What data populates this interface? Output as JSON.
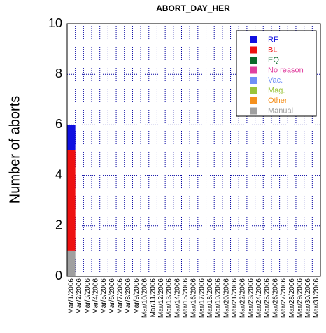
{
  "chart_data": {
    "type": "stacked_bar",
    "title": "ABORT_DAY_HER",
    "y_label": "Number of aborts",
    "categories": [
      "Mar/1/2006",
      "Mar/2/2006",
      "Mar/3/2006",
      "Mar/4/2006",
      "Mar/5/2006",
      "Mar/6/2006",
      "Mar/7/2006",
      "Mar/8/2006",
      "Mar/9/2006",
      "Mar/10/2006",
      "Mar/11/2006",
      "Mar/12/2006",
      "Mar/13/2006",
      "Mar/14/2006",
      "Mar/15/2006",
      "Mar/16/2006",
      "Mar/17/2006",
      "Mar/18/2006",
      "Mar/19/2006",
      "Mar/20/2006",
      "Mar/21/2006",
      "Mar/22/2006",
      "Mar/23/2006",
      "Mar/24/2006",
      "Mar/25/2006",
      "Mar/26/2006",
      "Mar/27/2006",
      "Mar/28/2006",
      "Mar/29/2006",
      "Mar/30/2006",
      "Mar/31/2006"
    ],
    "series": [
      {
        "name": "RF",
        "color": "#1010e0",
        "values": [
          1,
          0,
          0,
          0,
          0,
          0,
          0,
          0,
          0,
          0,
          0,
          0,
          0,
          0,
          0,
          0,
          0,
          0,
          0,
          0,
          0,
          0,
          0,
          0,
          0,
          0,
          0,
          0,
          0,
          0,
          0
        ]
      },
      {
        "name": "BL",
        "color": "#ee1111",
        "values": [
          4,
          0,
          0,
          0,
          0,
          0,
          0,
          0,
          0,
          0,
          0,
          0,
          0,
          0,
          0,
          0,
          0,
          0,
          0,
          0,
          0,
          0,
          0,
          0,
          0,
          0,
          0,
          0,
          0,
          0,
          0
        ]
      },
      {
        "name": "EQ",
        "color": "#0a6a2a",
        "values": [
          0,
          0,
          0,
          0,
          0,
          0,
          0,
          0,
          0,
          0,
          0,
          0,
          0,
          0,
          0,
          0,
          0,
          0,
          0,
          0,
          0,
          0,
          0,
          0,
          0,
          0,
          0,
          0,
          0,
          0,
          0
        ]
      },
      {
        "name": "No reason",
        "color": "#e0409f",
        "values": [
          0,
          0,
          0,
          0,
          0,
          0,
          0,
          0,
          0,
          0,
          0,
          0,
          0,
          0,
          0,
          0,
          0,
          0,
          0,
          0,
          0,
          0,
          0,
          0,
          0,
          0,
          0,
          0,
          0,
          0,
          0
        ]
      },
      {
        "name": "Vac.",
        "color": "#6f8ff7",
        "values": [
          0,
          0,
          0,
          0,
          0,
          0,
          0,
          0,
          0,
          0,
          0,
          0,
          0,
          0,
          0,
          0,
          0,
          0,
          0,
          0,
          0,
          0,
          0,
          0,
          0,
          0,
          0,
          0,
          0,
          0,
          0
        ]
      },
      {
        "name": "Mag.",
        "color": "#9ac43a",
        "values": [
          0,
          0,
          0,
          0,
          0,
          0,
          0,
          0,
          0,
          0,
          0,
          0,
          0,
          0,
          0,
          0,
          0,
          0,
          0,
          0,
          0,
          0,
          0,
          0,
          0,
          0,
          0,
          0,
          0,
          0,
          0
        ]
      },
      {
        "name": "Other",
        "color": "#f5901e",
        "values": [
          0,
          0,
          0,
          0,
          0,
          0,
          0,
          0,
          0,
          0,
          0,
          0,
          0,
          0,
          0,
          0,
          0,
          0,
          0,
          0,
          0,
          0,
          0,
          0,
          0,
          0,
          0,
          0,
          0,
          0,
          0
        ]
      },
      {
        "name": "Manual",
        "color": "#a0a0a0",
        "values": [
          1,
          0,
          0,
          0,
          0,
          0,
          0,
          0,
          0,
          0,
          0,
          0,
          0,
          0,
          0,
          0,
          0,
          0,
          0,
          0,
          0,
          0,
          0,
          0,
          0,
          0,
          0,
          0,
          0,
          0,
          0
        ]
      }
    ],
    "ylim": [
      0,
      10
    ],
    "yticks": [
      0,
      2,
      4,
      6,
      8,
      10
    ],
    "grid": true,
    "legend": "upper right"
  }
}
